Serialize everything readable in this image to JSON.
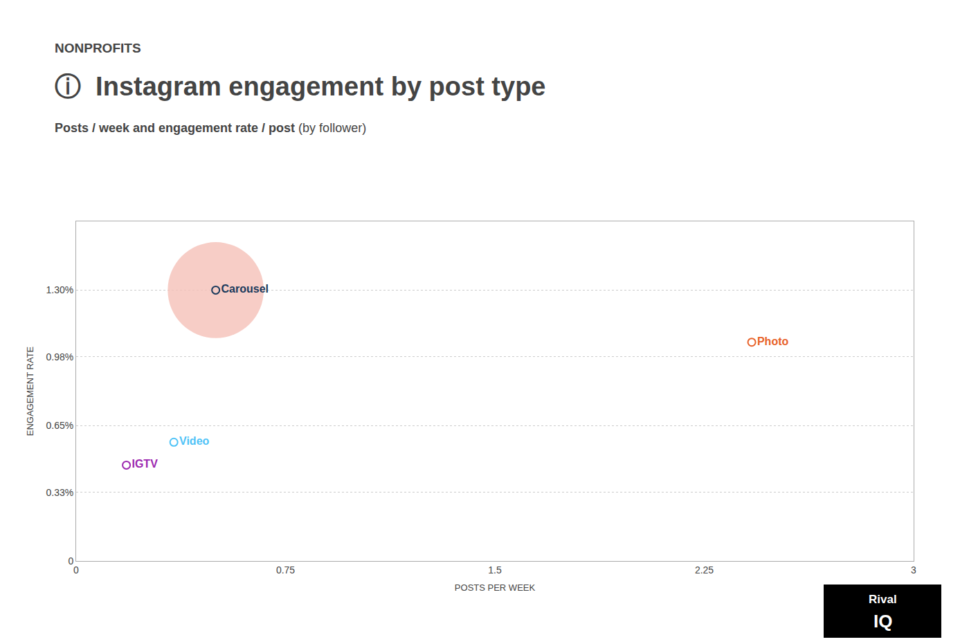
{
  "chart_data": {
    "type": "scatter",
    "annotations": [
      "NONPROFITS",
      "Rival",
      "IQ"
    ],
    "title": "ⓘ  Instagram engagement by post type",
    "subtitle": [
      "Posts / week and engagement rate / post",
      " (by follower)"
    ],
    "labels": [
      "Carousel",
      "Photo",
      "Video",
      "IGTV"
    ],
    "x": [
      0.5,
      2.42,
      0.35,
      0.18
    ],
    "values": [
      0.013,
      0.0105,
      0.0057,
      0.0046
    ],
    "colors": [
      "#1a3a5c",
      "#e8622a",
      "#4fc3f7",
      "#9c27b0"
    ],
    "sizes": [
      5000,
      0,
      0,
      0
    ],
    "bubble_colors": [
      "#f5c0b8",
      null,
      null,
      null
    ],
    "xlim": [
      0,
      3
    ],
    "ylim": [
      0,
      0.0163
    ],
    "xticks": [
      0,
      0.75,
      1.5,
      2.25,
      3
    ],
    "yticks": [
      0,
      {
        "value": 0.0033,
        "label": "0.33%"
      },
      {
        "value": 0.0065,
        "label": "0.65%"
      },
      {
        "value": 0.0098,
        "label": "0.98%"
      },
      {
        "value": 0.013,
        "label": "1.30%"
      }
    ],
    "xlabel": "POSTS PER WEEK",
    "ylabel": "ENGAGEMENT RATE",
    "grid": "y"
  }
}
